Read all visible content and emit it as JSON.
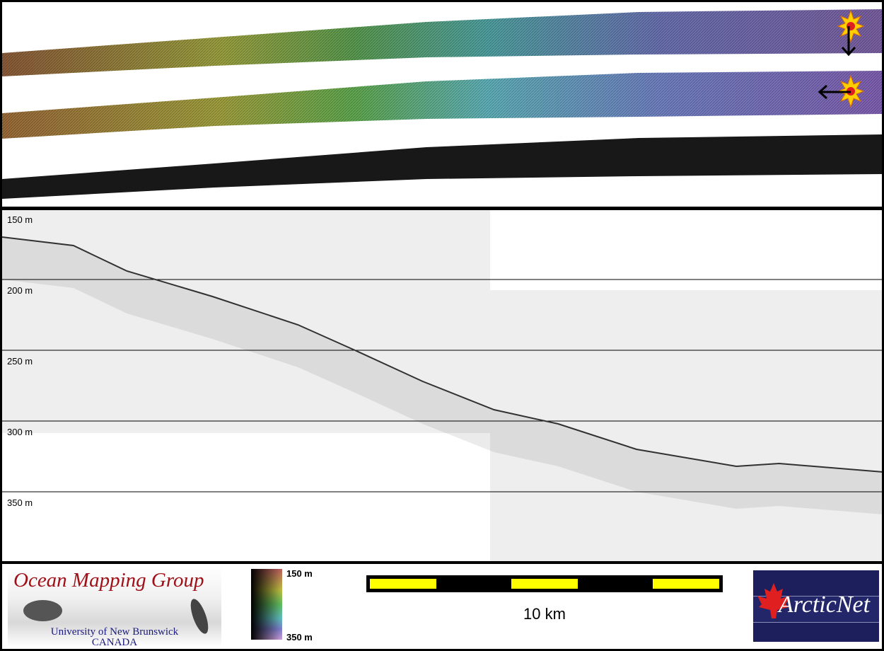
{
  "swath_panel": {
    "strips": [
      {
        "name": "colour-shaded-relief-north-sun",
        "colors": [
          "#8a5a3a",
          "#9a9a40",
          "#5a9a50",
          "#50a0a0",
          "#6a70b0",
          "#7a60a0"
        ]
      },
      {
        "name": "colour-shaded-relief-east-sun",
        "colors": [
          "#9a6a3a",
          "#a0a040",
          "#60a850",
          "#60b0b8",
          "#7080c0",
          "#8060b0"
        ]
      },
      {
        "name": "backscatter",
        "colors": [
          "#1a1a1a",
          "#111111"
        ]
      }
    ]
  },
  "profile_panel": {
    "depth_labels": [
      "150 m",
      "200 m",
      "250 m",
      "300 m",
      "350 m"
    ],
    "depth_ticks": [
      150,
      200,
      250,
      300,
      350
    ],
    "seabed_profile": {
      "distance_km": [
        0,
        2,
        3.5,
        5.9,
        8.3,
        9.9,
        11.8,
        13.8,
        15.6,
        17.8,
        20.6,
        21.8,
        24.7
      ],
      "depth_m": [
        170,
        176,
        194,
        212,
        232,
        250,
        272,
        292,
        302,
        320,
        332,
        330,
        336
      ]
    }
  },
  "footer": {
    "omg_logo": {
      "title": "Ocean Mapping Group",
      "line1": "University of New Brunswick",
      "line2": "CANADA"
    },
    "colorbar": {
      "top_label": "150 m",
      "bottom_label": "350 m"
    },
    "scale_bar": {
      "label": "10 km"
    },
    "arcticnet_logo": {
      "text": "ArcticNet"
    }
  }
}
